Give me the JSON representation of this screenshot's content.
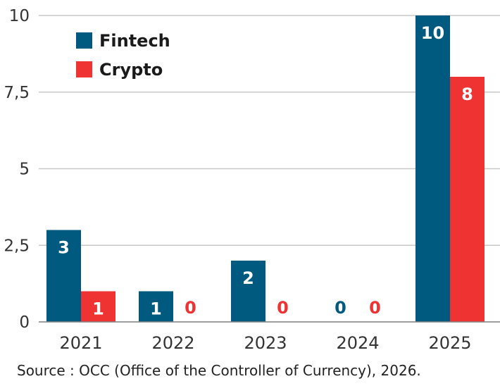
{
  "chart_data": {
    "type": "bar",
    "categories": [
      "2021",
      "2022",
      "2023",
      "2024",
      "2025"
    ],
    "series": [
      {
        "name": "Fintech",
        "values": [
          3,
          1,
          2,
          0,
          10
        ],
        "color": "#005a7f"
      },
      {
        "name": "Crypto",
        "values": [
          1,
          0,
          0,
          0,
          8
        ],
        "color": "#ef3333"
      }
    ],
    "ylim": [
      0,
      10
    ],
    "yticks": [
      0,
      2.5,
      5,
      7.5,
      10
    ],
    "ytick_labels": [
      "0",
      "2,5",
      "5",
      "7,5",
      "10"
    ],
    "grid": true,
    "legend_position": "top-left",
    "data_labels": true
  },
  "source": "Source : OCC (Office of the Controller of Currency), 2026."
}
